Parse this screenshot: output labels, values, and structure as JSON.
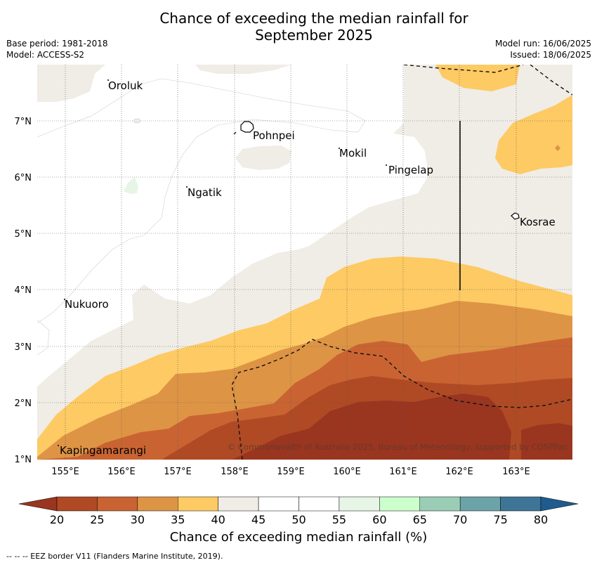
{
  "title": {
    "line1": "Chance of exceeding the median rainfall for",
    "line2": "September 2025"
  },
  "meta": {
    "base_period": "Base period: 1981-2018",
    "model": "Model: ACCESS-S2",
    "model_run": "Model run: 16/06/2025",
    "issued": "Issued: 18/06/2025"
  },
  "map": {
    "lat_labels": [
      "7°N",
      "6°N",
      "5°N",
      "4°N",
      "3°N",
      "2°N",
      "1°N"
    ],
    "lon_labels": [
      "155°E",
      "156°E",
      "157°E",
      "158°E",
      "159°E",
      "160°E",
      "161°E",
      "162°E",
      "163°E"
    ],
    "places": [
      "Oroluk",
      "Pohnpei",
      "Mokil",
      "Pingelap",
      "Ngatik",
      "Kosrae",
      "Nukuoro",
      "Kapingamarangi"
    ],
    "copyright": "© Commonwealth of Australia 2025, Bureau of Meteorology, supported by COSPPac"
  },
  "colorbar": {
    "ticks": [
      "20",
      "25",
      "30",
      "35",
      "40",
      "45",
      "50",
      "55",
      "60",
      "65",
      "70",
      "75",
      "80"
    ],
    "colors": [
      "#b04a24",
      "#c96432",
      "#de9445",
      "#fdca63",
      "#f0ece6",
      "#ffffff",
      "#ffffff",
      "#e7f5e6",
      "#ccffcc",
      "#9bcdb6",
      "#6ca3a6",
      "#3e7596"
    ],
    "low_color": "#9a3520",
    "high_color": "#1f5b8e",
    "label": "Chance of exceeding median rainfall (%)"
  },
  "footer": "--  --  -- EEZ border V11 (Flanders Marine Institute, 2019)."
}
